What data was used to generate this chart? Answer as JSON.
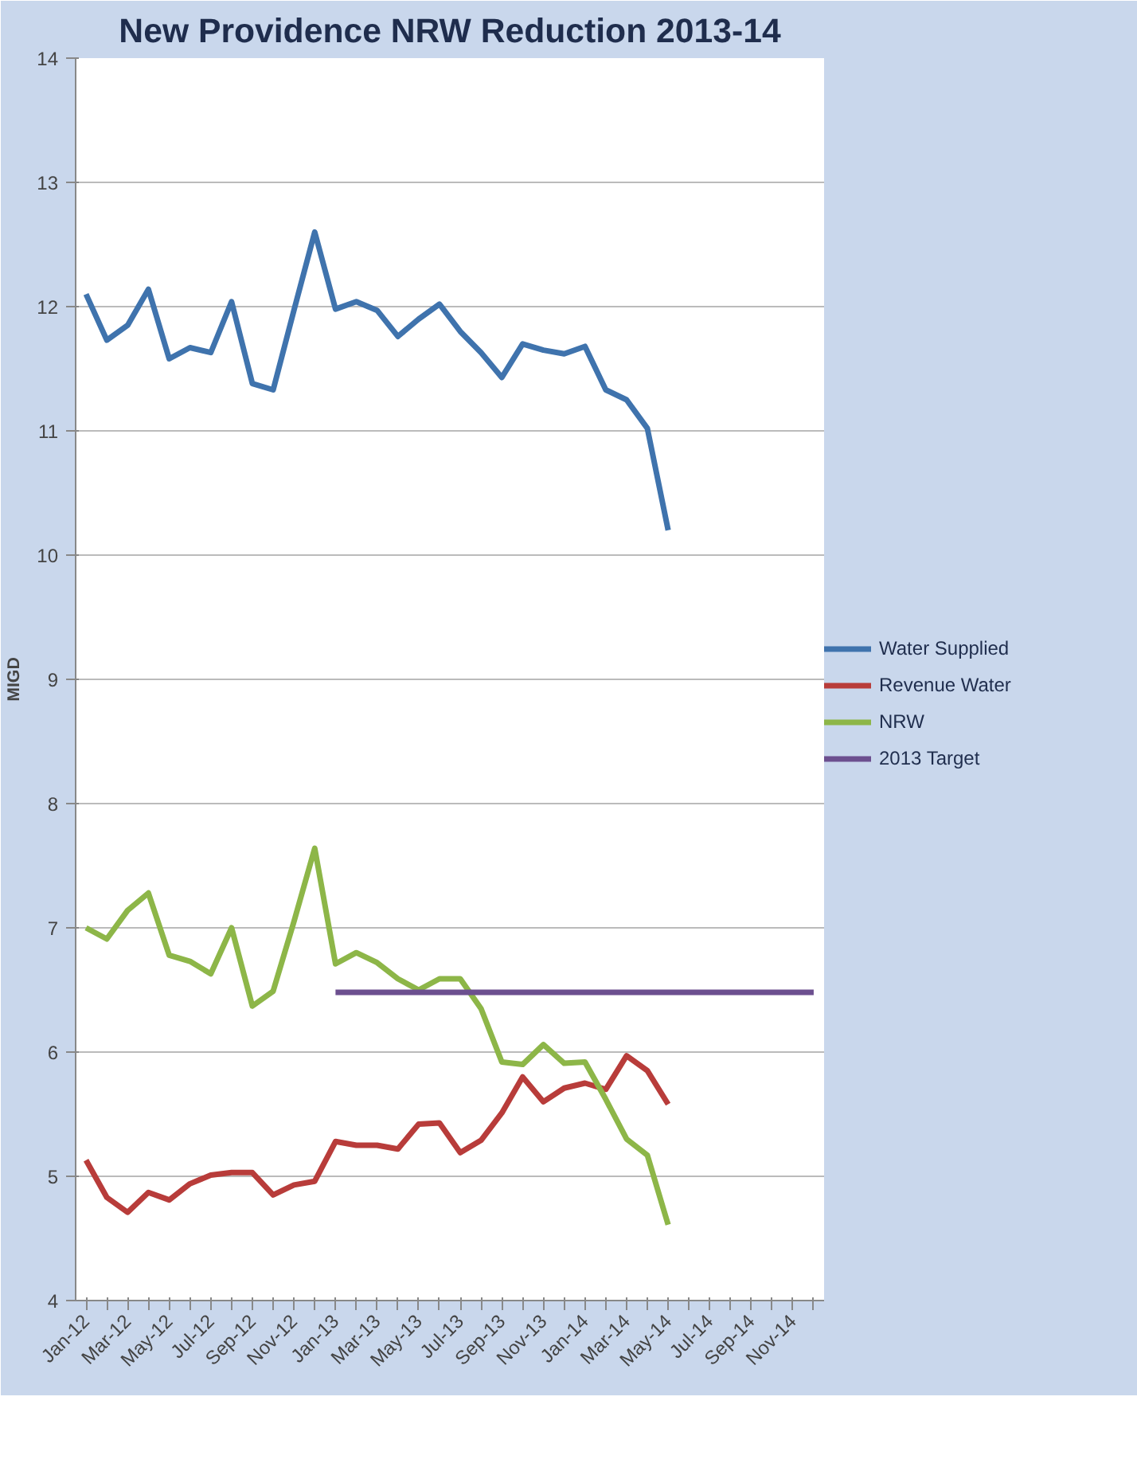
{
  "chart_data": {
    "type": "line",
    "title": "New Providence NRW Reduction 2013-14",
    "ylabel": "MIGD",
    "categories": [
      "Jan-12",
      null,
      "Mar-12",
      null,
      "May-12",
      null,
      "Jul-12",
      null,
      "Sep-12",
      null,
      "Nov-12",
      null,
      "Jan-13",
      null,
      "Mar-13",
      null,
      "May-13",
      null,
      "Jul-13",
      null,
      "Sep-13",
      null,
      "Nov-13",
      null,
      "Jan-14",
      null,
      "Mar-14",
      null,
      "May-14",
      null,
      "Jul-14",
      null,
      "Sep-14",
      null,
      "Nov-14",
      null
    ],
    "series": [
      {
        "name": "Water Supplied",
        "color": "#3f73ad",
        "values": [
          12.1,
          11.73,
          11.85,
          12.14,
          11.58,
          11.67,
          11.63,
          12.04,
          11.38,
          11.33,
          11.97,
          12.6,
          11.98,
          12.04,
          11.97,
          11.76,
          11.9,
          12.02,
          11.8,
          11.63,
          11.43,
          11.7,
          11.65,
          11.62,
          11.68,
          11.33,
          11.25,
          11.02,
          10.2,
          null,
          null,
          null,
          null,
          null,
          null,
          null
        ]
      },
      {
        "name": "Revenue Water",
        "color": "#b83c3a",
        "values": [
          5.13,
          4.83,
          4.71,
          4.87,
          4.81,
          4.94,
          5.01,
          5.03,
          5.03,
          4.85,
          4.93,
          4.96,
          5.28,
          5.25,
          5.25,
          5.22,
          5.42,
          5.43,
          5.19,
          5.29,
          5.51,
          5.8,
          5.6,
          5.71,
          5.75,
          5.7,
          5.97,
          5.85,
          5.58,
          null,
          null,
          null,
          null,
          null,
          null,
          null
        ]
      },
      {
        "name": "NRW",
        "color": "#8db648",
        "values": [
          7.0,
          6.91,
          7.14,
          7.28,
          6.78,
          6.73,
          6.63,
          7.0,
          6.37,
          6.49,
          7.05,
          7.64,
          6.71,
          6.8,
          6.72,
          6.59,
          6.5,
          6.59,
          6.59,
          6.35,
          5.92,
          5.9,
          6.06,
          5.91,
          5.92,
          5.62,
          5.3,
          5.17,
          4.61,
          null,
          null,
          null,
          null,
          null,
          null,
          null
        ]
      },
      {
        "name": "2013 Target",
        "color": "#6c4f8f",
        "values": [
          null,
          null,
          null,
          null,
          null,
          null,
          null,
          null,
          null,
          null,
          null,
          null,
          6.48,
          6.48,
          6.48,
          6.48,
          6.48,
          6.48,
          6.48,
          6.48,
          6.48,
          6.48,
          6.48,
          6.48,
          6.48,
          6.48,
          6.48,
          6.48,
          6.48,
          6.48,
          6.48,
          6.48,
          6.48,
          6.48,
          6.48,
          6.48
        ]
      }
    ],
    "ylim": [
      4,
      14
    ],
    "yticks": [
      4,
      5,
      6,
      7,
      8,
      9,
      10,
      11,
      12,
      13,
      14
    ],
    "grid": "y",
    "legend": "right"
  }
}
